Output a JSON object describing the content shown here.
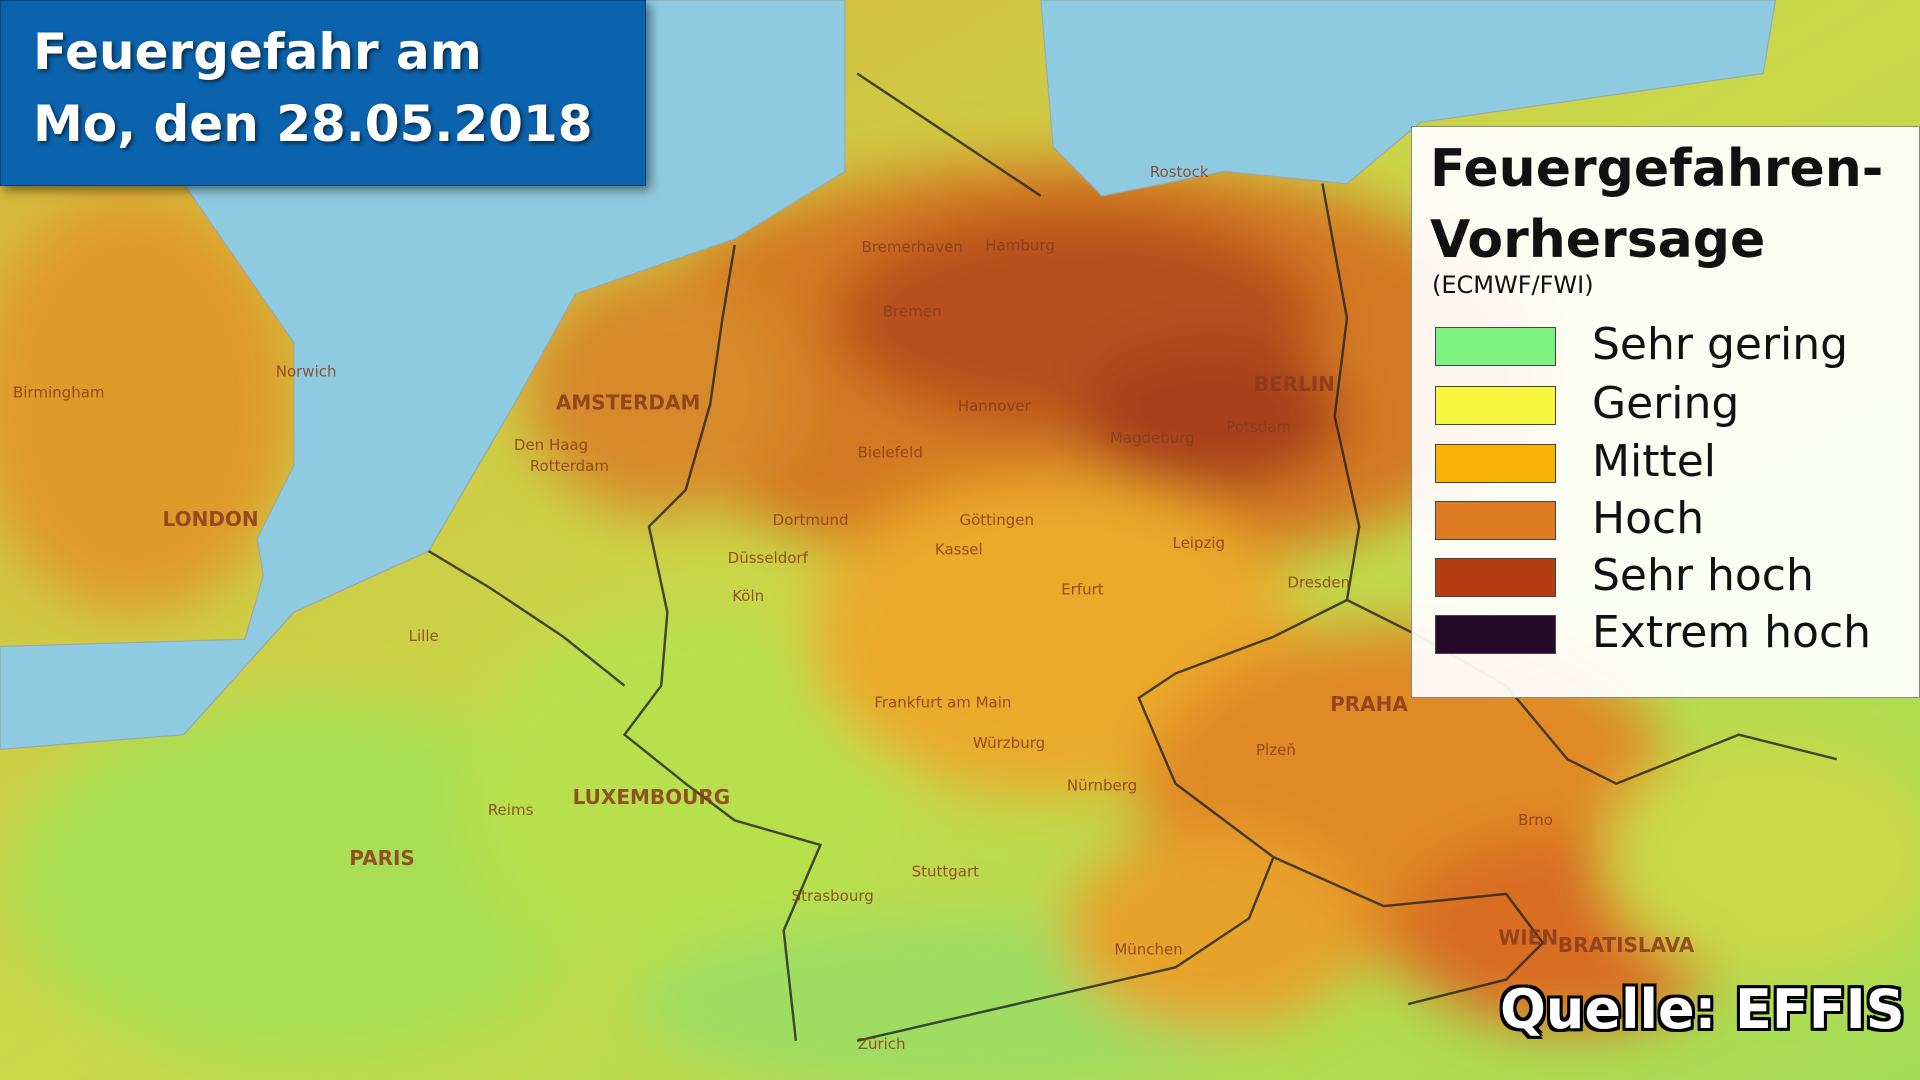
{
  "header": {
    "title_line1": "Feuergefahr am",
    "title_line2": "Mo, den 28.05.2018"
  },
  "legend": {
    "title_line1": "Feuergefahren-",
    "title_line2": "Vorhersage",
    "subtitle": "(ECMWF/FWI)",
    "items": [
      {
        "label": "Sehr gering",
        "color": "#7df27f"
      },
      {
        "label": "Gering",
        "color": "#f8f73f"
      },
      {
        "label": "Mittel",
        "color": "#f8b106"
      },
      {
        "label": "Hoch",
        "color": "#dd7a22"
      },
      {
        "label": "Sehr hoch",
        "color": "#b43d12"
      },
      {
        "label": "Extrem hoch",
        "color": "#26092b"
      }
    ]
  },
  "source": "Quelle: EFFIS",
  "map": {
    "cities": [
      "Hamburg",
      "Bremen",
      "Bremerhaven",
      "Rostock",
      "BERLIN",
      "Potsdam",
      "Hannover",
      "Magdeburg",
      "AMSTERDAM",
      "Den Haag",
      "Rotterdam",
      "LONDON",
      "Birmingham",
      "PARIS",
      "LUXEMBOURG",
      "PRAHA",
      "WIEN",
      "BRATISLAVA",
      "München",
      "Frankfurt am Main",
      "Köln",
      "Düsseldorf",
      "Dortmund",
      "Dresden",
      "Leipzig",
      "Stuttgart",
      "Nürnberg",
      "Kassel",
      "Bielefeld",
      "Lille",
      "Strasbourg",
      "Zürich",
      "Brno",
      "Plzeň",
      "Erfurt",
      "Würzburg",
      "Reims",
      "Norwich",
      "Göttingen"
    ]
  }
}
